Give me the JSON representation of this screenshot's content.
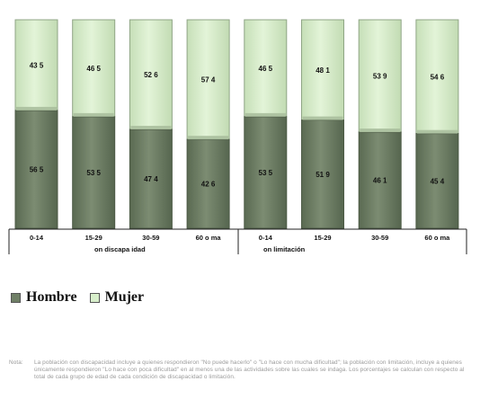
{
  "chart_data": {
    "type": "bar",
    "stacked": true,
    "percent": true,
    "groups": [
      {
        "label": "on discapa idad",
        "categories": [
          "0-14",
          "15-29",
          "30-59",
          "60 o ma"
        ]
      },
      {
        "label": "on limitación",
        "categories": [
          "0-14",
          "15-29",
          "30-59",
          "60 o ma"
        ]
      }
    ],
    "categories": [
      "0-14",
      "15-29",
      "30-59",
      "60 o ma",
      "0-14",
      "15-29",
      "30-59",
      "60 o ma"
    ],
    "series": [
      {
        "name": "Hombre",
        "color": "#6f7f66",
        "values": [
          56.5,
          53.5,
          47.4,
          42.6,
          53.5,
          51.9,
          46.1,
          45.4
        ],
        "labels": [
          "56 5",
          "53 5",
          "47 4",
          "42 6",
          "53 5",
          "51 9",
          "46 1",
          "45 4"
        ]
      },
      {
        "name": "Mujer",
        "color": "#d8efcb",
        "values": [
          43.5,
          46.5,
          52.6,
          57.4,
          46.5,
          48.1,
          53.9,
          54.6
        ],
        "labels": [
          "43 5",
          "46 5",
          "52 6",
          "57 4",
          "46 5",
          "48 1",
          "53 9",
          "54 6"
        ]
      }
    ],
    "ylim": [
      0,
      100
    ],
    "legend_position": "bottom-left",
    "grid": false
  },
  "legend": [
    {
      "name": "Hombre",
      "color": "#6f7f66"
    },
    {
      "name": "Mujer",
      "color": "#d8efcb"
    }
  ],
  "note": {
    "lead": "Nota:",
    "text": "La población con discapacidad incluye a quienes respondieron \"No puede hacerlo\" o \"Lo hace con mucha dificultad\"; la población con limitación, incluye a quienes únicamente respondieron \"Lo hace con poca dificultad\" en al menos una de las actividades sobre las cuales se indaga. Los porcentajes se calculan con respecto al total de cada grupo de edad de cada condición de discapacidad o limitación."
  }
}
